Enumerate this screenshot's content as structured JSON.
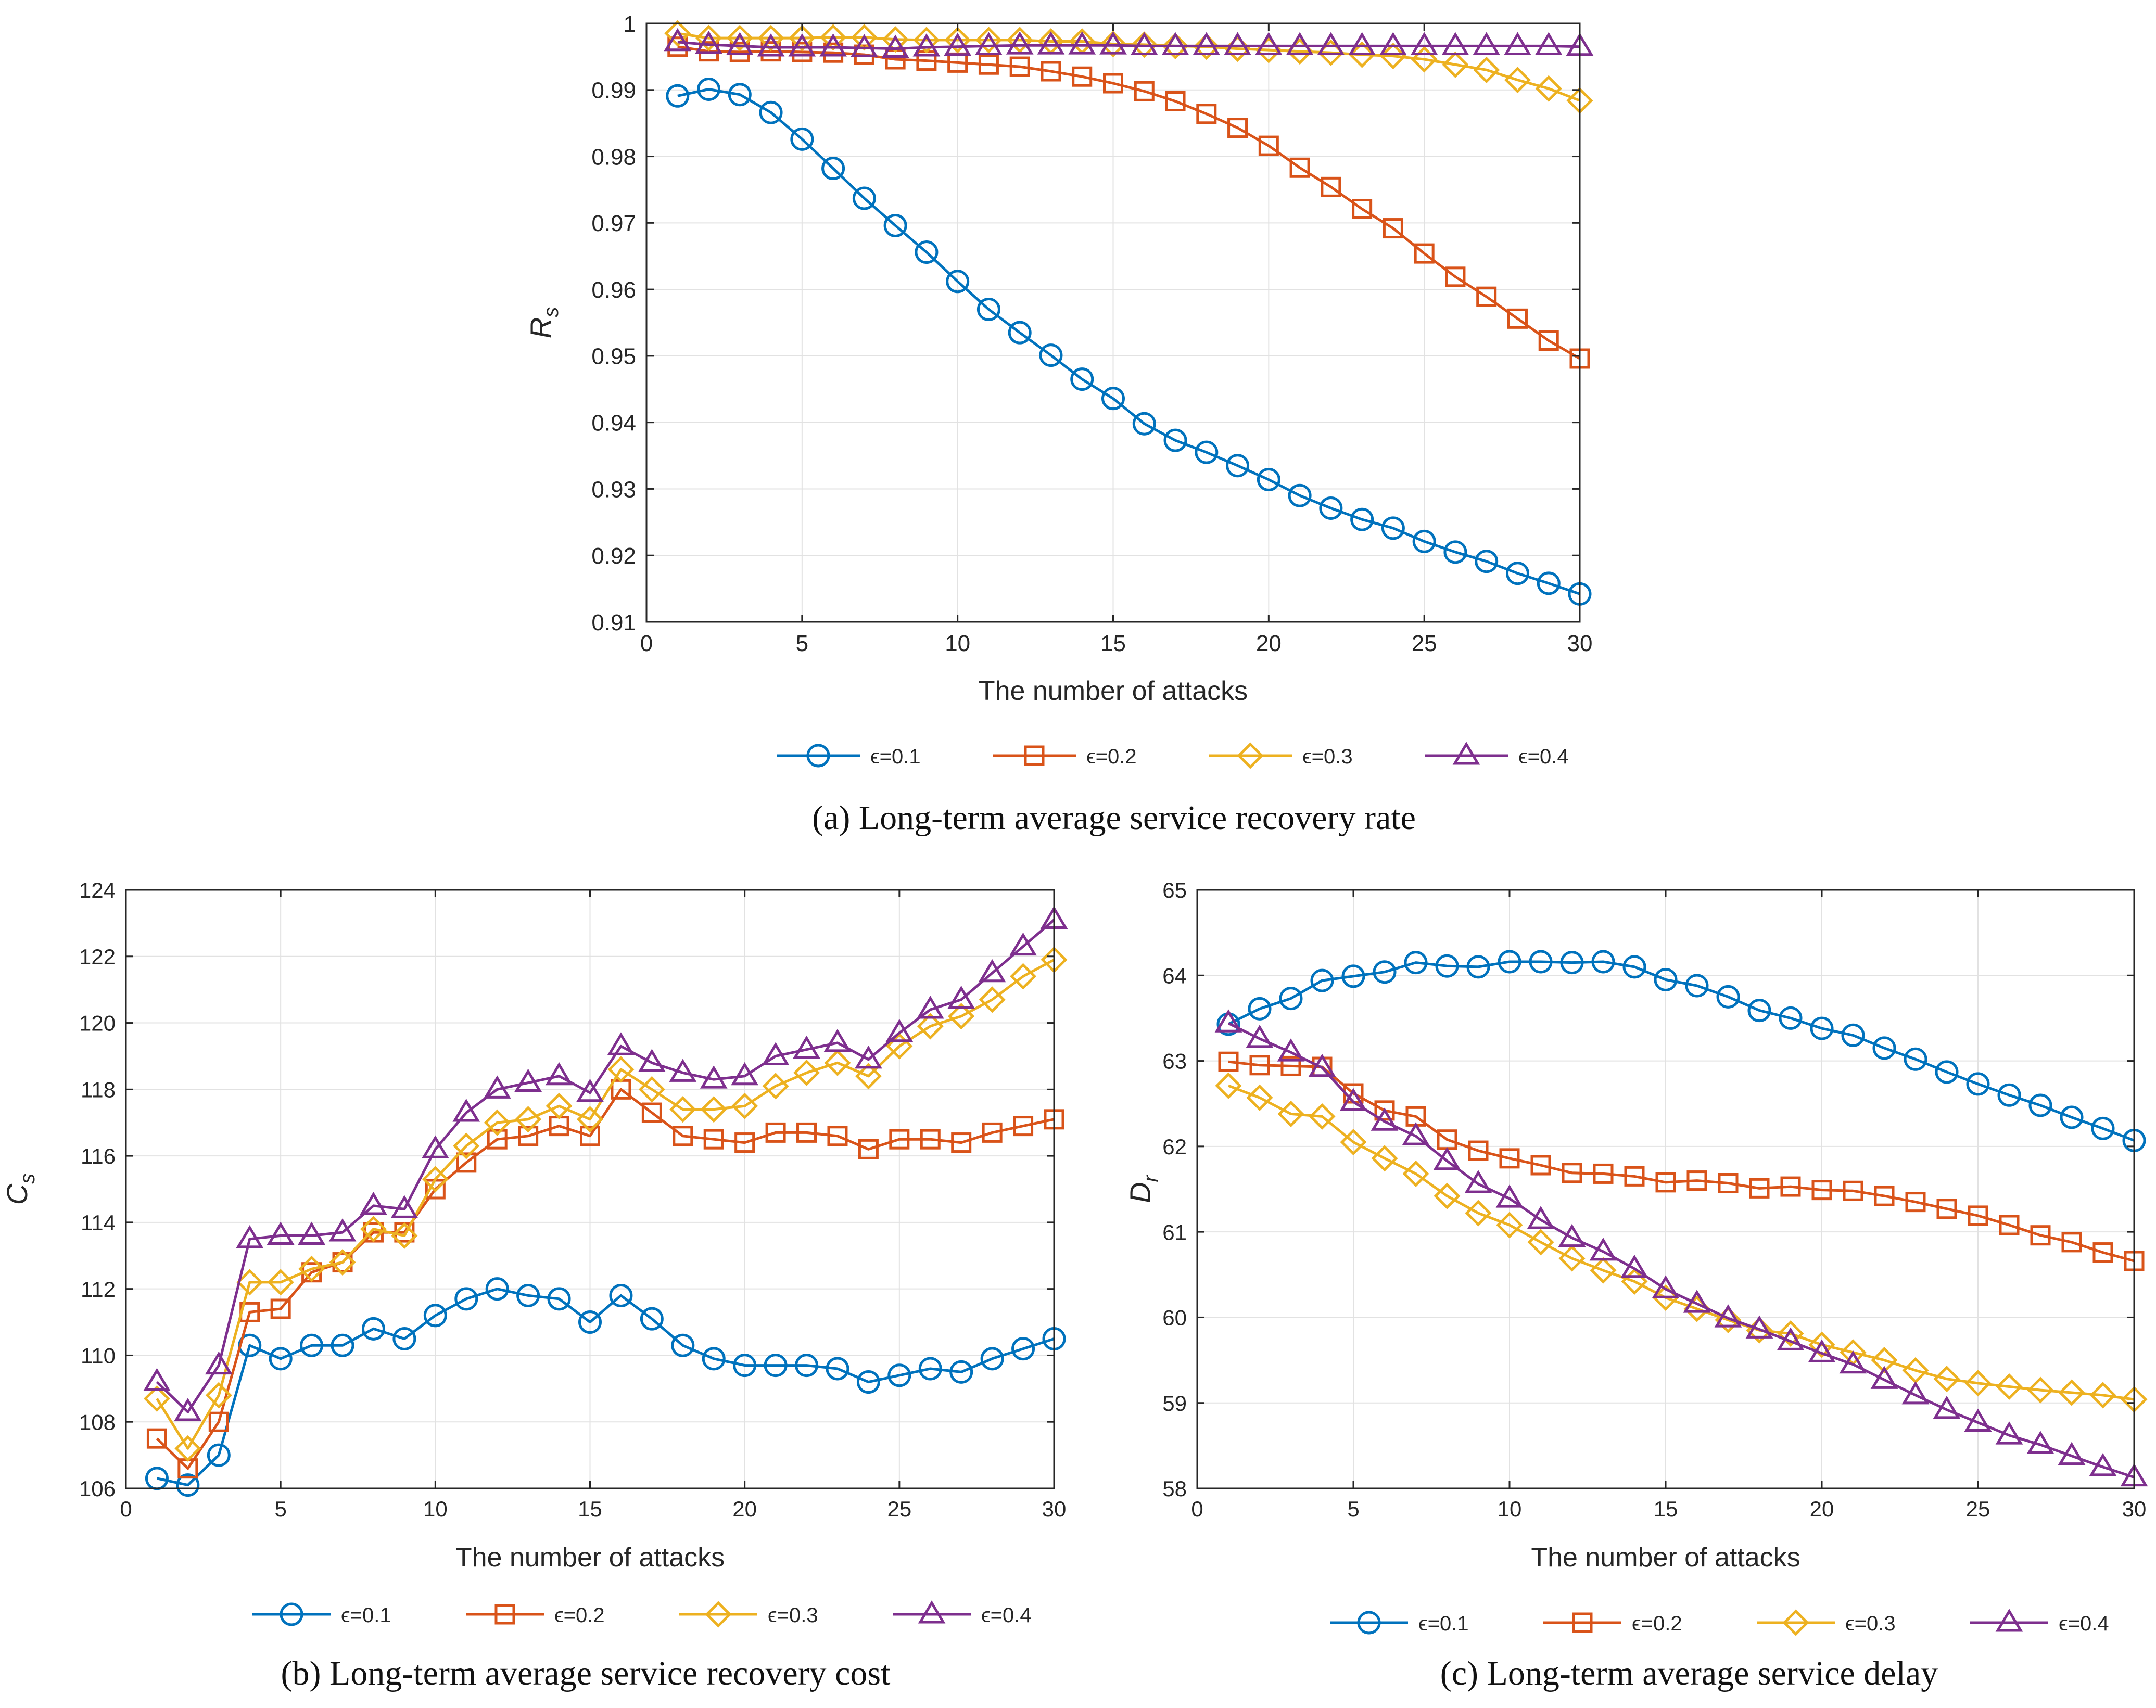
{
  "colors": {
    "eps01": "#0072BD",
    "eps02": "#D95319",
    "eps03": "#EDB120",
    "eps04": "#7E2F8E",
    "grid": "#e2e2e2",
    "axis": "#262626"
  },
  "chart_data": [
    {
      "id": "a",
      "type": "line",
      "caption": "(a) Long-term average service recovery rate",
      "xlabel": "The number of attacks",
      "ylabel_main": "R",
      "ylabel_sub": "s",
      "xlim": [
        0,
        30
      ],
      "ylim": [
        0.91,
        1.0
      ],
      "xticks": [
        0,
        5,
        10,
        15,
        20,
        25,
        30
      ],
      "xtick_labels": [
        "0",
        "5",
        "10",
        "15",
        "20",
        "25",
        "30"
      ],
      "yticks": [
        0.91,
        0.92,
        0.93,
        0.94,
        0.95,
        0.96,
        0.97,
        0.98,
        0.99,
        1.0
      ],
      "ytick_labels": [
        "0.91",
        "0.92",
        "0.93",
        "0.94",
        "0.95",
        "0.96",
        "0.97",
        "0.98",
        "0.99",
        "1"
      ],
      "grid": true,
      "legend_position": "below",
      "x": [
        1,
        2,
        3,
        4,
        5,
        6,
        7,
        8,
        9,
        10,
        11,
        12,
        13,
        14,
        15,
        16,
        17,
        18,
        19,
        20,
        21,
        22,
        23,
        24,
        25,
        26,
        27,
        28,
        29,
        30
      ],
      "series": [
        {
          "name": "ϵ=0.1",
          "marker": "circle",
          "color_key": "eps01",
          "values": [
            0.9891,
            0.9901,
            0.9893,
            0.9866,
            0.9826,
            0.9782,
            0.9737,
            0.9696,
            0.9656,
            0.9612,
            0.957,
            0.9535,
            0.9501,
            0.9465,
            0.9436,
            0.9398,
            0.9373,
            0.9355,
            0.9335,
            0.9314,
            0.929,
            0.9271,
            0.9254,
            0.9241,
            0.9221,
            0.9205,
            0.9191,
            0.9173,
            0.9158,
            0.9142
          ]
        },
        {
          "name": "ϵ=0.2",
          "marker": "square",
          "color_key": "eps02",
          "values": [
            0.9965,
            0.9958,
            0.9957,
            0.9958,
            0.9957,
            0.9956,
            0.9953,
            0.9946,
            0.9944,
            0.9941,
            0.9938,
            0.9935,
            0.9928,
            0.992,
            0.991,
            0.9898,
            0.9883,
            0.9864,
            0.9843,
            0.9816,
            0.9783,
            0.9754,
            0.9721,
            0.9692,
            0.9654,
            0.9619,
            0.9589,
            0.9556,
            0.9523,
            0.9496
          ]
        },
        {
          "name": "ϵ=0.3",
          "marker": "diamond",
          "color_key": "eps03",
          "values": [
            0.9985,
            0.9978,
            0.9978,
            0.9978,
            0.9978,
            0.9979,
            0.9979,
            0.9976,
            0.9975,
            0.9975,
            0.9975,
            0.9975,
            0.9973,
            0.9973,
            0.9969,
            0.9968,
            0.9966,
            0.9965,
            0.9962,
            0.996,
            0.9958,
            0.9956,
            0.9953,
            0.9951,
            0.9946,
            0.9938,
            0.993,
            0.9915,
            0.9902,
            0.9884
          ]
        },
        {
          "name": "ϵ=0.4",
          "marker": "triangle",
          "color_key": "eps04",
          "values": [
            0.9972,
            0.9968,
            0.9966,
            0.9964,
            0.9964,
            0.9964,
            0.9963,
            0.9962,
            0.9964,
            0.9965,
            0.9966,
            0.9967,
            0.9967,
            0.9967,
            0.9967,
            0.9966,
            0.9966,
            0.9966,
            0.9966,
            0.9966,
            0.9966,
            0.9966,
            0.9966,
            0.9966,
            0.9966,
            0.9966,
            0.9966,
            0.9966,
            0.9966,
            0.9965
          ]
        }
      ]
    },
    {
      "id": "b",
      "type": "line",
      "caption": "(b) Long-term average service recovery cost",
      "xlabel": "The number of attacks",
      "ylabel_main": "C",
      "ylabel_sub": "s",
      "xlim": [
        0,
        30
      ],
      "ylim": [
        106,
        124
      ],
      "xticks": [
        0,
        5,
        10,
        15,
        20,
        25,
        30
      ],
      "xtick_labels": [
        "0",
        "5",
        "10",
        "15",
        "20",
        "25",
        "30"
      ],
      "yticks": [
        106,
        108,
        110,
        112,
        114,
        116,
        118,
        120,
        122,
        124
      ],
      "ytick_labels": [
        "106",
        "108",
        "110",
        "112",
        "114",
        "116",
        "118",
        "120",
        "122",
        "124"
      ],
      "grid": true,
      "legend_position": "below",
      "x": [
        1,
        2,
        3,
        4,
        5,
        6,
        7,
        8,
        9,
        10,
        11,
        12,
        13,
        14,
        15,
        16,
        17,
        18,
        19,
        20,
        21,
        22,
        23,
        24,
        25,
        26,
        27,
        28,
        29,
        30
      ],
      "series": [
        {
          "name": "ϵ=0.1",
          "marker": "circle",
          "color_key": "eps01",
          "values": [
            106.3,
            106.1,
            107.0,
            110.3,
            109.9,
            110.3,
            110.3,
            110.8,
            110.5,
            111.2,
            111.7,
            112.0,
            111.8,
            111.7,
            111.0,
            111.8,
            111.1,
            110.3,
            109.9,
            109.7,
            109.7,
            109.7,
            109.6,
            109.2,
            109.4,
            109.6,
            109.5,
            109.9,
            110.2,
            110.5
          ]
        },
        {
          "name": "ϵ=0.2",
          "marker": "square",
          "color_key": "eps02",
          "values": [
            107.5,
            106.6,
            108.0,
            111.3,
            111.4,
            112.5,
            112.8,
            113.7,
            113.7,
            115.0,
            115.8,
            116.5,
            116.6,
            116.9,
            116.6,
            118.0,
            117.3,
            116.6,
            116.5,
            116.4,
            116.7,
            116.7,
            116.6,
            116.2,
            116.5,
            116.5,
            116.4,
            116.7,
            116.9,
            117.1
          ]
        },
        {
          "name": "ϵ=0.3",
          "marker": "diamond",
          "color_key": "eps03",
          "values": [
            108.7,
            107.2,
            108.8,
            112.2,
            112.2,
            112.6,
            112.8,
            113.8,
            113.6,
            115.3,
            116.3,
            117.0,
            117.1,
            117.5,
            117.1,
            118.6,
            118.0,
            117.4,
            117.4,
            117.5,
            118.1,
            118.5,
            118.8,
            118.4,
            119.3,
            119.9,
            120.2,
            120.7,
            121.4,
            121.9
          ]
        },
        {
          "name": "ϵ=0.4",
          "marker": "triangle",
          "color_key": "eps04",
          "values": [
            109.2,
            108.3,
            109.7,
            113.5,
            113.6,
            113.6,
            113.7,
            114.5,
            114.4,
            116.2,
            117.3,
            118.0,
            118.2,
            118.4,
            117.9,
            119.3,
            118.8,
            118.5,
            118.3,
            118.4,
            119.0,
            119.2,
            119.4,
            118.9,
            119.7,
            120.4,
            120.7,
            121.5,
            122.3,
            123.1
          ]
        }
      ]
    },
    {
      "id": "c",
      "type": "line",
      "caption": "(c) Long-term average service delay",
      "xlabel": "The number of attacks",
      "ylabel_main": "D",
      "ylabel_sub": "r",
      "xlim": [
        0,
        30
      ],
      "ylim": [
        58,
        65
      ],
      "xticks": [
        0,
        5,
        10,
        15,
        20,
        25,
        30
      ],
      "xtick_labels": [
        "0",
        "5",
        "10",
        "15",
        "20",
        "25",
        "30"
      ],
      "yticks": [
        58,
        59,
        60,
        61,
        62,
        63,
        64,
        65
      ],
      "ytick_labels": [
        "58",
        "59",
        "60",
        "61",
        "62",
        "63",
        "64",
        "65"
      ],
      "grid": true,
      "legend_position": "below",
      "x": [
        1,
        2,
        3,
        4,
        5,
        6,
        7,
        8,
        9,
        10,
        11,
        12,
        13,
        14,
        15,
        16,
        17,
        18,
        19,
        20,
        21,
        22,
        23,
        24,
        25,
        26,
        27,
        28,
        29,
        30
      ],
      "series": [
        {
          "name": "ϵ=0.1",
          "marker": "circle",
          "color_key": "eps01",
          "values": [
            63.43,
            63.61,
            63.73,
            63.94,
            63.99,
            64.04,
            64.15,
            64.11,
            64.1,
            64.16,
            64.16,
            64.15,
            64.16,
            64.1,
            63.95,
            63.88,
            63.75,
            63.59,
            63.5,
            63.38,
            63.3,
            63.15,
            63.02,
            62.87,
            62.73,
            62.6,
            62.48,
            62.34,
            62.21,
            62.07
          ]
        },
        {
          "name": "ϵ=0.2",
          "marker": "square",
          "color_key": "eps02",
          "values": [
            62.99,
            62.95,
            62.94,
            62.93,
            62.62,
            62.42,
            62.35,
            62.08,
            61.95,
            61.86,
            61.78,
            61.69,
            61.68,
            61.65,
            61.58,
            61.6,
            61.57,
            61.51,
            61.53,
            61.49,
            61.48,
            61.42,
            61.35,
            61.27,
            61.19,
            61.08,
            60.96,
            60.88,
            60.76,
            60.66
          ]
        },
        {
          "name": "ϵ=0.3",
          "marker": "diamond",
          "color_key": "eps03",
          "values": [
            62.71,
            62.57,
            62.38,
            62.35,
            62.05,
            61.86,
            61.68,
            61.42,
            61.22,
            61.08,
            60.88,
            60.69,
            60.55,
            60.42,
            60.23,
            60.1,
            59.97,
            59.85,
            59.81,
            59.68,
            59.59,
            59.5,
            59.38,
            59.28,
            59.23,
            59.19,
            59.15,
            59.12,
            59.09,
            59.04
          ]
        },
        {
          "name": "ϵ=0.4",
          "marker": "triangle",
          "color_key": "eps04",
          "values": [
            63.44,
            63.26,
            63.1,
            62.92,
            62.52,
            62.29,
            62.12,
            61.83,
            61.56,
            61.39,
            61.14,
            60.93,
            60.77,
            60.57,
            60.33,
            60.16,
            59.99,
            59.86,
            59.72,
            59.58,
            59.45,
            59.27,
            59.09,
            58.92,
            58.77,
            58.62,
            58.51,
            58.38,
            58.25,
            58.13
          ]
        }
      ]
    }
  ]
}
